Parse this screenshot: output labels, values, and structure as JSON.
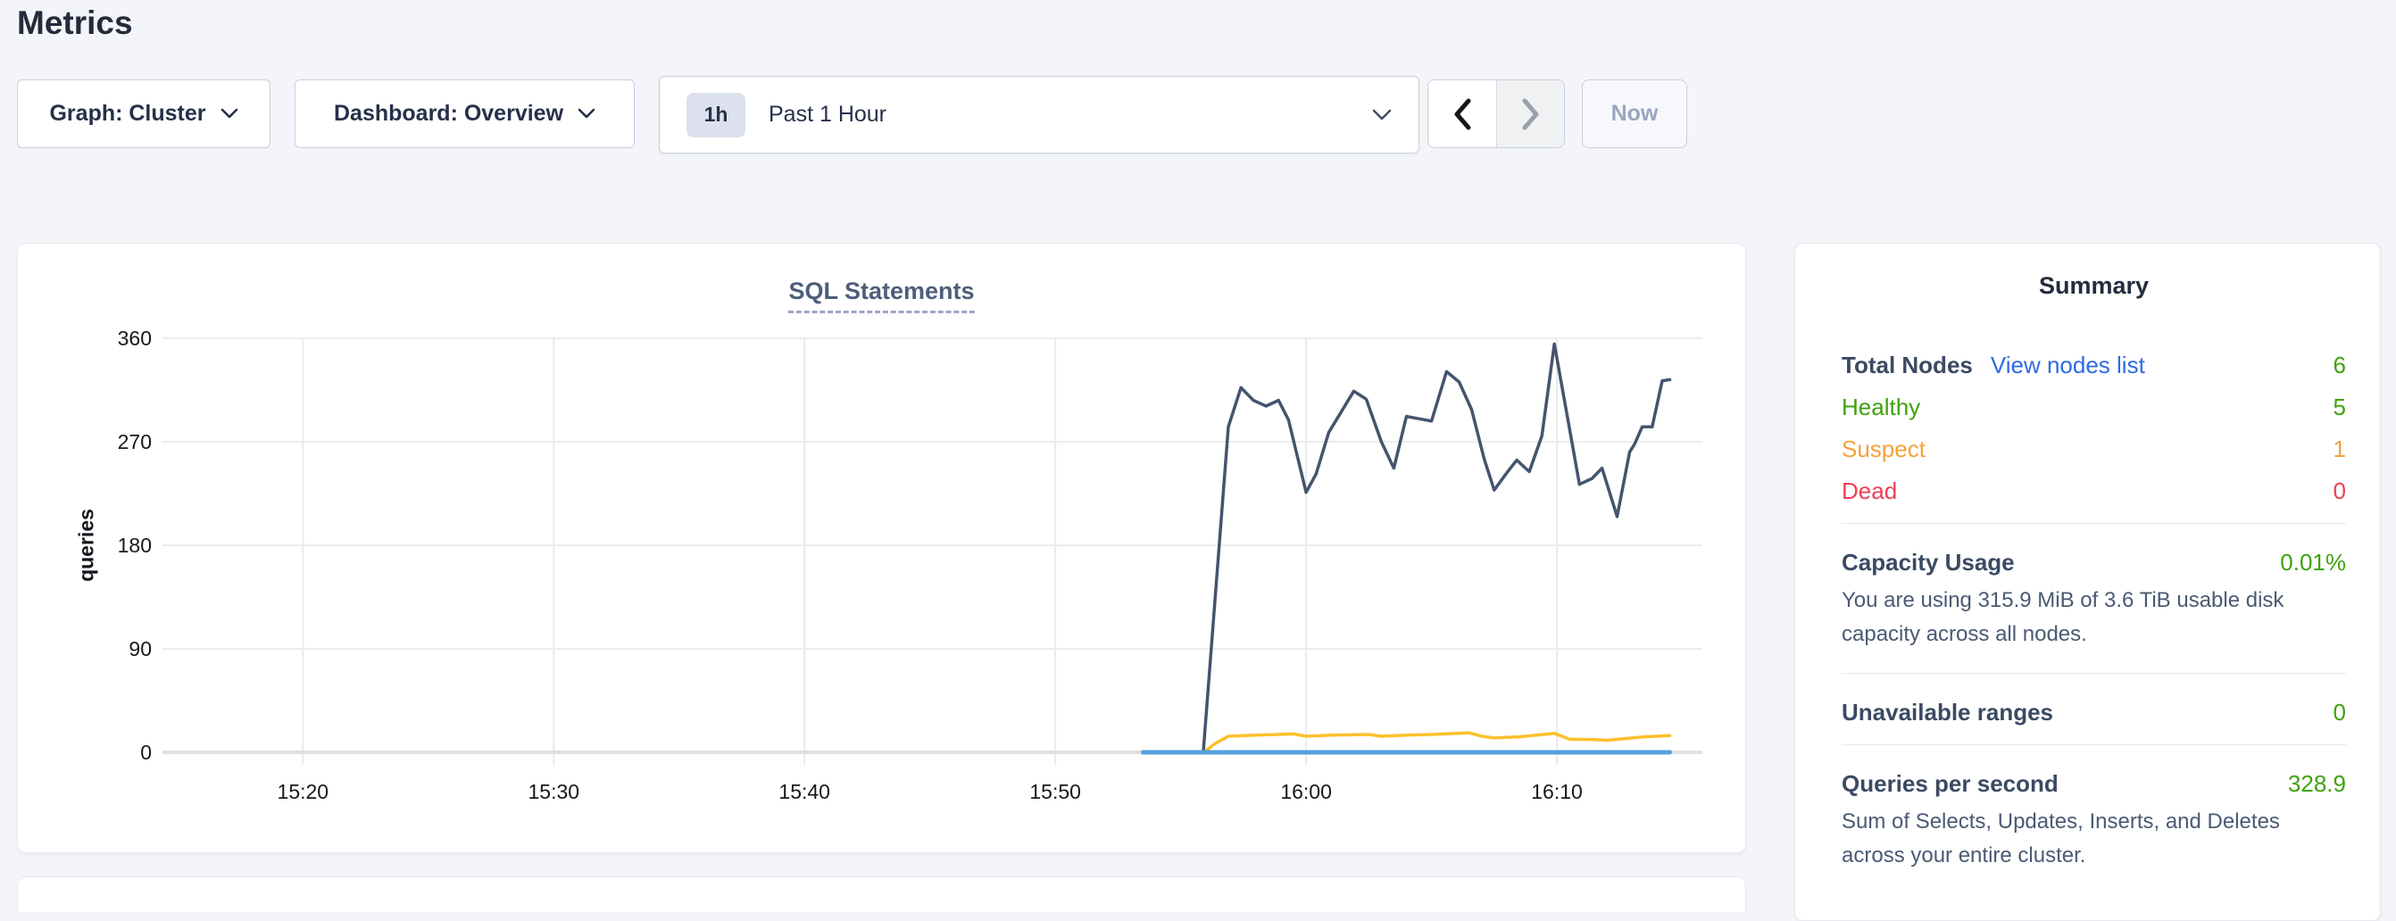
{
  "page": {
    "title": "Metrics"
  },
  "toolbar": {
    "graph_selector": {
      "label": "Graph: Cluster"
    },
    "dashboard_selector": {
      "label": "Dashboard: Overview"
    },
    "time_window": {
      "preset_badge": "1h",
      "label": "Past 1 Hour"
    },
    "now_button_label": "Now"
  },
  "chart_data": {
    "type": "line",
    "title": "SQL Statements",
    "xlabel": "",
    "ylabel": "queries",
    "ylim": [
      0,
      360
    ],
    "yticks": [
      0,
      90,
      180,
      270,
      360
    ],
    "x_axis_unit": "minutes after 15:00",
    "x_domain": [
      14.4,
      75.8
    ],
    "xticks": [
      {
        "minutes": 20,
        "label": "15:20"
      },
      {
        "minutes": 30,
        "label": "15:30"
      },
      {
        "minutes": 40,
        "label": "15:40"
      },
      {
        "minutes": 50,
        "label": "15:50"
      },
      {
        "minutes": 60,
        "label": "16:00"
      },
      {
        "minutes": 70,
        "label": "16:10"
      }
    ],
    "grid": true,
    "legend": "none",
    "series": [
      {
        "name": "statements-yellow",
        "color": "#fdc02c",
        "stroke_width": 3.5,
        "points": [
          [
            53.5,
            0
          ],
          [
            55.9,
            0
          ],
          [
            56.4,
            8
          ],
          [
            56.9,
            14
          ],
          [
            58,
            15
          ],
          [
            59.5,
            16
          ],
          [
            60,
            14
          ],
          [
            61,
            15
          ],
          [
            62.5,
            15.5
          ],
          [
            63,
            14
          ],
          [
            64,
            15
          ],
          [
            65,
            15.5
          ],
          [
            66.5,
            17
          ],
          [
            67,
            14
          ],
          [
            67.5,
            12.5
          ],
          [
            68.5,
            13.5
          ],
          [
            69.9,
            16.5
          ],
          [
            70.5,
            11.5
          ],
          [
            71.5,
            11
          ],
          [
            72,
            10.5
          ],
          [
            73,
            12.5
          ],
          [
            73.5,
            13.5
          ],
          [
            74.5,
            14.5
          ]
        ]
      },
      {
        "name": "statements-dark-blue",
        "color": "#45546e",
        "stroke_width": 3.5,
        "points": [
          [
            53.5,
            0
          ],
          [
            55.9,
            0
          ],
          [
            56.9,
            283
          ],
          [
            57.4,
            317
          ],
          [
            57.9,
            306
          ],
          [
            58.4,
            301
          ],
          [
            58.9,
            306
          ],
          [
            59.3,
            289
          ],
          [
            60,
            226
          ],
          [
            60.4,
            242
          ],
          [
            60.9,
            278
          ],
          [
            61.9,
            314
          ],
          [
            62.4,
            307
          ],
          [
            63,
            270
          ],
          [
            63.5,
            247
          ],
          [
            64,
            292
          ],
          [
            64.5,
            290
          ],
          [
            65,
            288
          ],
          [
            65.6,
            331
          ],
          [
            66.1,
            322
          ],
          [
            66.6,
            298
          ],
          [
            67.1,
            255
          ],
          [
            67.5,
            228
          ],
          [
            68,
            243
          ],
          [
            68.4,
            254
          ],
          [
            68.9,
            244
          ],
          [
            69.4,
            275
          ],
          [
            69.9,
            355
          ],
          [
            70.9,
            233
          ],
          [
            71.4,
            238
          ],
          [
            71.8,
            247
          ],
          [
            72.4,
            205
          ],
          [
            72.9,
            261
          ],
          [
            73.1,
            268
          ],
          [
            73.4,
            283
          ],
          [
            73.8,
            283
          ],
          [
            74.2,
            323
          ],
          [
            74.5,
            324
          ]
        ]
      },
      {
        "name": "statements-light-blue",
        "color": "#57a0dc",
        "stroke_width": 5,
        "points": [
          [
            53.5,
            0
          ],
          [
            74.5,
            0
          ]
        ]
      }
    ]
  },
  "summary": {
    "heading": "Summary",
    "nodes": {
      "label": "Total Nodes",
      "link": "View nodes list",
      "value": "6",
      "rows": [
        {
          "label": "Healthy",
          "value": "5",
          "status": "green"
        },
        {
          "label": "Suspect",
          "value": "1",
          "status": "orange"
        },
        {
          "label": "Dead",
          "value": "0",
          "status": "red"
        }
      ]
    },
    "capacity": {
      "label": "Capacity Usage",
      "value": "0.01%",
      "description": "You are using 315.9 MiB of 3.6 TiB usable disk capacity across all nodes."
    },
    "unavailable": {
      "label": "Unavailable ranges",
      "value": "0"
    },
    "qps": {
      "label": "Queries per second",
      "value": "328.9",
      "description": "Sum of Selects, Updates, Inserts, and Deletes across your entire cluster."
    },
    "colors": {
      "green": "#3ea20c",
      "orange": "#f2a33a",
      "red": "#ee3f55",
      "link_blue": "#2a6be2"
    }
  }
}
